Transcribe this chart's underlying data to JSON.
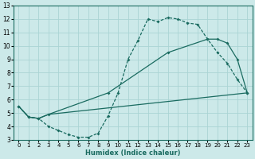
{
  "title": "",
  "xlabel": "Humidex (Indice chaleur)",
  "xlim": [
    -0.5,
    23.5
  ],
  "ylim": [
    3,
    13
  ],
  "xticks": [
    0,
    1,
    2,
    3,
    4,
    5,
    6,
    7,
    8,
    9,
    10,
    11,
    12,
    13,
    14,
    15,
    16,
    17,
    18,
    19,
    20,
    21,
    22,
    23
  ],
  "yticks": [
    3,
    4,
    5,
    6,
    7,
    8,
    9,
    10,
    11,
    12,
    13
  ],
  "bg_color": "#cce9e9",
  "line_color": "#1a6b60",
  "grid_color": "#aad4d4",
  "curve1_x": [
    0,
    1,
    2,
    3,
    4,
    5,
    6,
    7,
    8,
    9,
    10,
    11,
    12,
    13,
    14,
    15,
    16,
    17,
    18,
    19,
    20,
    21,
    22,
    23
  ],
  "curve1_y": [
    5.5,
    4.7,
    4.6,
    4.0,
    3.7,
    3.4,
    3.2,
    3.2,
    3.5,
    4.8,
    6.5,
    9.0,
    10.4,
    12.0,
    11.8,
    12.1,
    12.0,
    11.7,
    11.6,
    10.5,
    9.5,
    8.7,
    7.5,
    6.5
  ],
  "curve2_x": [
    0,
    1,
    2,
    3,
    9,
    15,
    19,
    20,
    21,
    22,
    23
  ],
  "curve2_y": [
    5.5,
    4.7,
    4.6,
    4.9,
    6.5,
    9.5,
    10.5,
    10.5,
    10.2,
    9.0,
    6.5
  ],
  "curve3_x": [
    0,
    1,
    2,
    3,
    23
  ],
  "curve3_y": [
    5.5,
    4.7,
    4.6,
    4.9,
    6.5
  ]
}
